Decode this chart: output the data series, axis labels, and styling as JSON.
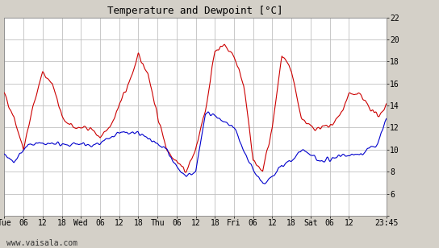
{
  "title": "Temperature and Dewpoint [°C]",
  "background_color": "#d4d0c8",
  "plot_bg_color": "#ffffff",
  "grid_color": "#c0c0c0",
  "temp_color": "#cc0000",
  "dewp_color": "#0000cc",
  "line_width": 0.8,
  "ylim": [
    4,
    22
  ],
  "yticks": [
    4,
    6,
    8,
    10,
    12,
    14,
    16,
    18,
    20,
    22
  ],
  "ytick_labels": [
    "",
    "6",
    "8",
    "10",
    "12",
    "14",
    "16",
    "18",
    "20",
    "22"
  ],
  "x_tick_labels": [
    "Tue",
    "06",
    "12",
    "18",
    "Wed",
    "06",
    "12",
    "18",
    "Thu",
    "06",
    "12",
    "18",
    "Fri",
    "06",
    "12",
    "18",
    "Sat",
    "06",
    "12",
    "23:45"
  ],
  "tick_positions": [
    0,
    6,
    12,
    18,
    24,
    30,
    36,
    42,
    48,
    54,
    60,
    66,
    72,
    78,
    84,
    90,
    96,
    102,
    108,
    119.75
  ],
  "xlim": [
    0,
    119.75
  ],
  "watermark": "www.vaisala.com",
  "title_fontsize": 9,
  "tick_fontsize": 7,
  "watermark_fontsize": 7,
  "temp_ctrl_t": [
    0,
    3,
    6,
    9,
    12,
    15,
    18,
    21,
    24,
    27,
    30,
    33,
    36,
    39,
    42,
    45,
    48,
    51,
    54,
    57,
    60,
    63,
    66,
    69,
    72,
    75,
    78,
    81,
    84,
    87,
    90,
    93,
    96,
    99,
    102,
    105,
    108,
    111,
    114,
    117,
    119.75
  ],
  "temp_ctrl_v": [
    15,
    13,
    10,
    14,
    17,
    16,
    13,
    12,
    12,
    12,
    11,
    12,
    14,
    16,
    18.5,
    17,
    13,
    10,
    9,
    8,
    10,
    13.5,
    19,
    19.5,
    18.5,
    16,
    9,
    8,
    12,
    18.5,
    17,
    13,
    12,
    12,
    12,
    13,
    15,
    15,
    14,
    13,
    14
  ],
  "dewp_ctrl_t": [
    0,
    3,
    6,
    9,
    12,
    15,
    18,
    21,
    24,
    27,
    30,
    33,
    36,
    39,
    42,
    45,
    48,
    51,
    54,
    57,
    60,
    63,
    66,
    69,
    72,
    75,
    78,
    81,
    84,
    87,
    90,
    93,
    96,
    99,
    102,
    105,
    108,
    111,
    114,
    117,
    119.75
  ],
  "dewp_ctrl_v": [
    9.5,
    9,
    10,
    10.5,
    10.5,
    10.5,
    10.5,
    10.5,
    10.5,
    10.5,
    10.5,
    11,
    11.5,
    11.5,
    11.5,
    11,
    10.5,
    10,
    8.5,
    7.5,
    8,
    13.5,
    13,
    12.5,
    12,
    10,
    8,
    7,
    7.5,
    8.5,
    9,
    10,
    9.5,
    9,
    9,
    9.5,
    9.5,
    9.5,
    10,
    10.5,
    13
  ]
}
